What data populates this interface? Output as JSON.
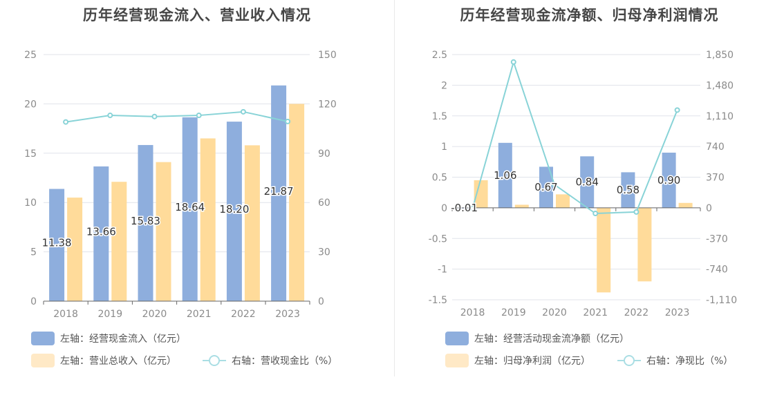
{
  "colors": {
    "bar1": "#8eaedd",
    "bar2": "#ffdb9a",
    "line": "#88d3d7",
    "legend_bar2": "#ffe9c6",
    "legend_line": "#aadee4",
    "grid": "#e0e3ea",
    "axis": "#666666"
  },
  "chart_data": [
    {
      "type": "bar",
      "title": "历年经营现金流入、营业收入情况",
      "categories": [
        "2018",
        "2019",
        "2020",
        "2021",
        "2022",
        "2023"
      ],
      "y_left": {
        "ticks": [
          "0",
          "5",
          "10",
          "15",
          "20",
          "25"
        ],
        "range": [
          0,
          25
        ]
      },
      "y_right": {
        "ticks": [
          "0",
          "30",
          "60",
          "90",
          "120",
          "150"
        ],
        "range": [
          0,
          150
        ]
      },
      "series": [
        {
          "name": "左轴：经营现金流入（亿元）",
          "axis": "left",
          "kind": "bar",
          "values": [
            11.38,
            13.66,
            15.83,
            18.64,
            18.2,
            21.87
          ],
          "labels": [
            "11.38",
            "13.66",
            "15.83",
            "18.64",
            "18.20",
            "21.87"
          ]
        },
        {
          "name": "左轴：营业总收入（亿元）",
          "axis": "left",
          "kind": "bar",
          "values": [
            10.5,
            12.1,
            14.1,
            16.5,
            15.8,
            20.0
          ]
        },
        {
          "name": "右轴：营收现金比（%）",
          "axis": "right",
          "kind": "line",
          "values": [
            109,
            113,
            112.3,
            113,
            115.2,
            109.3
          ]
        }
      ]
    },
    {
      "type": "bar",
      "title": "历年经营现金流净额、归母净利润情况",
      "categories": [
        "2018",
        "2019",
        "2020",
        "2021",
        "2022",
        "2023"
      ],
      "y_left": {
        "ticks": [
          "-1.5",
          "-1",
          "-0.5",
          "0",
          "0.5",
          "1",
          "1.5",
          "2",
          "2.5"
        ],
        "range": [
          -1.5,
          2.5
        ]
      },
      "y_right": {
        "ticks": [
          "-1,110",
          "-740",
          "-370",
          "0",
          "370",
          "740",
          "1,110",
          "1,480",
          "1,850"
        ],
        "range": [
          -1110,
          1850
        ]
      },
      "series": [
        {
          "name": "左轴：经营活动现金流净额（亿元）",
          "axis": "left",
          "kind": "bar",
          "values": [
            -0.01,
            1.06,
            0.67,
            0.84,
            0.58,
            0.9
          ],
          "labels": [
            "-0.01",
            "1.06",
            "0.67",
            "0.84",
            "0.58",
            "0.90"
          ]
        },
        {
          "name": "左轴：归母净利润（亿元）",
          "axis": "left",
          "kind": "bar",
          "values": [
            0.45,
            0.05,
            0.22,
            -1.38,
            -1.2,
            0.08
          ]
        },
        {
          "name": "右轴：净现比（%）",
          "axis": "right",
          "kind": "line",
          "values": [
            -5,
            1760,
            280,
            -68,
            -50,
            1180
          ]
        }
      ]
    }
  ]
}
